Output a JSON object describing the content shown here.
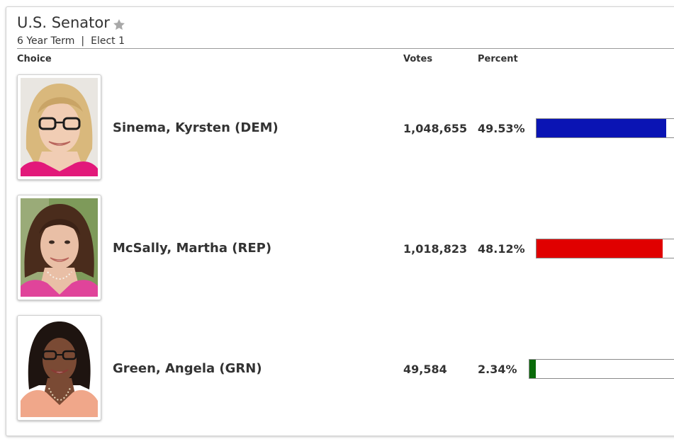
{
  "contest": {
    "title": "U.S. Senator",
    "term": "6 Year Term",
    "elect": "Elect 1"
  },
  "columns": {
    "choice": "Choice",
    "votes": "Votes",
    "percent": "Percent"
  },
  "candidates": [
    {
      "name": "Sinema, Kyrsten (DEM)",
      "votes": "1,048,655",
      "percent": "49.53%",
      "share": 49.53,
      "bar_color": "#0a14b4"
    },
    {
      "name": "McSally, Martha (REP)",
      "votes": "1,018,823",
      "percent": "48.12%",
      "share": 48.12,
      "bar_color": "#e00000"
    },
    {
      "name": "Green, Angela (GRN)",
      "votes": "49,584",
      "percent": "2.34%",
      "share": 2.34,
      "bar_color": "#0a6b0a"
    }
  ],
  "icons": {
    "favorite": "star-icon"
  }
}
